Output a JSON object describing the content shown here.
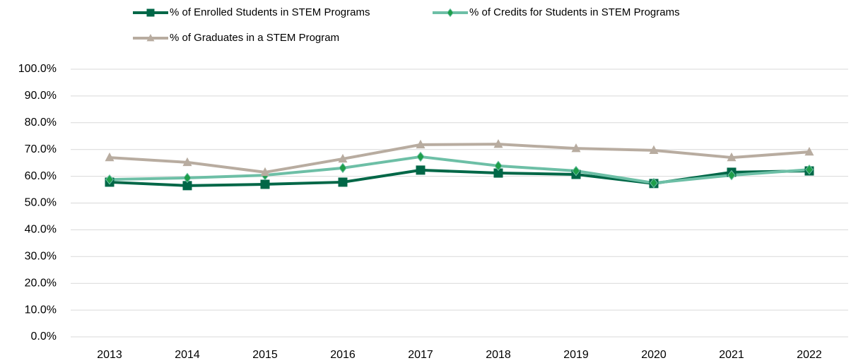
{
  "chart_data": {
    "type": "line",
    "categories": [
      "2013",
      "2014",
      "2015",
      "2016",
      "2017",
      "2018",
      "2019",
      "2020",
      "2021",
      "2022"
    ],
    "series": [
      {
        "name": "% of Enrolled Students in STEM Programs",
        "color": "#006747",
        "marker": "square",
        "marker_color": "#006747",
        "values": [
          57.8,
          56.5,
          57.0,
          57.8,
          62.3,
          61.2,
          60.7,
          57.3,
          61.5,
          62.0
        ]
      },
      {
        "name": "% of Credits for Students in STEM Programs",
        "color": "#6dbfa6",
        "marker": "diamond",
        "marker_color": "#1e9e4a",
        "values": [
          58.8,
          59.4,
          60.4,
          63.1,
          67.3,
          63.9,
          62.0,
          57.5,
          60.4,
          62.5
        ]
      },
      {
        "name": "% of Graduates in a STEM Program",
        "color": "#b8aca0",
        "marker": "triangle",
        "marker_color": "#b8aca0",
        "values": [
          67.0,
          65.2,
          61.5,
          66.5,
          71.8,
          72.0,
          70.4,
          69.7,
          67.0,
          69.1
        ]
      }
    ],
    "ylim": [
      0,
      100
    ],
    "yticks": [
      {
        "value": 0,
        "label": "0.0%"
      },
      {
        "value": 10,
        "label": "10.0%"
      },
      {
        "value": 20,
        "label": "20.0%"
      },
      {
        "value": 30,
        "label": "30.0%"
      },
      {
        "value": 40,
        "label": "40.0%"
      },
      {
        "value": 50,
        "label": "50.0%"
      },
      {
        "value": 60,
        "label": "60.0%"
      },
      {
        "value": 70,
        "label": "70.0%"
      },
      {
        "value": 80,
        "label": "80.0%"
      },
      {
        "value": 90,
        "label": "90.0%"
      },
      {
        "value": 100,
        "label": "100.0%"
      }
    ],
    "grid": true,
    "legend": "top"
  }
}
